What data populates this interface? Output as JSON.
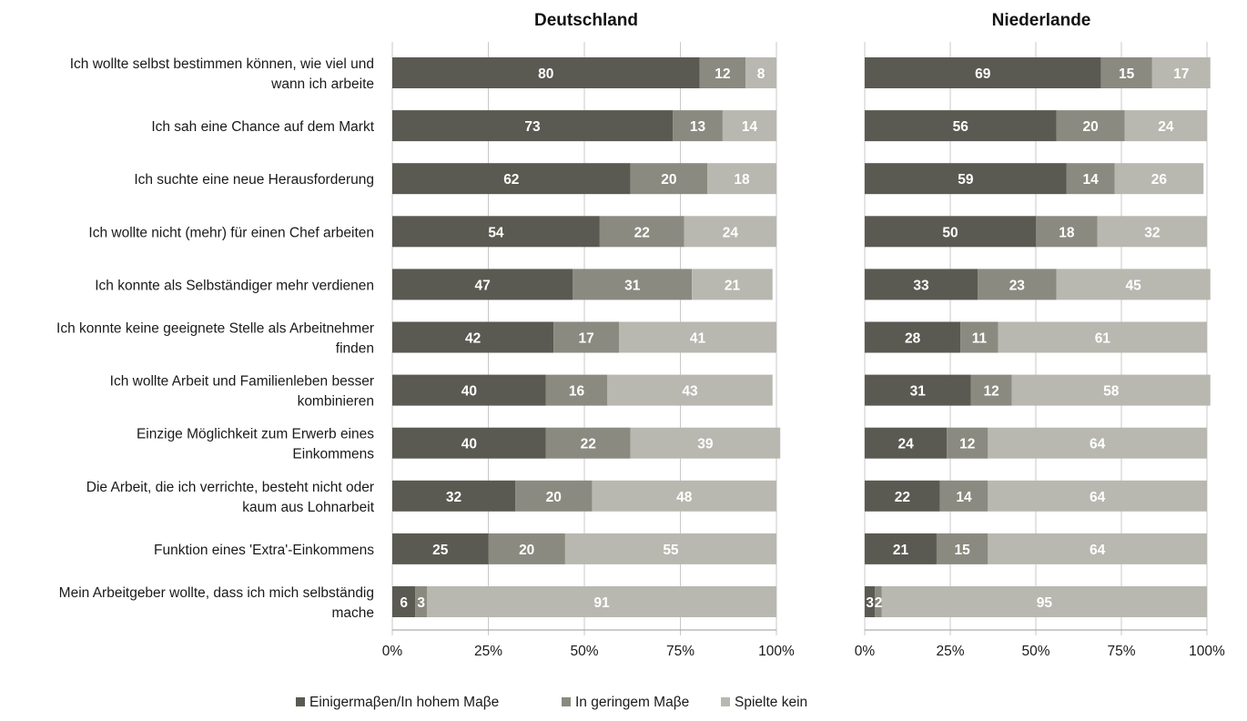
{
  "chart_data": [
    {
      "type": "bar",
      "orientation": "horizontal",
      "stacked": true,
      "title": "Deutschland",
      "categories": [
        "Ich wollte selbst bestimmen können, wie viel und wann ich arbeite",
        "Ich sah eine Chance auf dem Markt",
        "Ich suchte eine neue Herausforderung",
        "Ich wollte nicht (mehr) für einen Chef arbeiten",
        "Ich konnte als Selbständiger mehr verdienen",
        "Ich konnte keine geeignete Stelle als Arbeitnehmer finden",
        "Ich wollte Arbeit und Familienleben besser kombinieren",
        "Einzige Möglichkeit zum Erwerb eines Einkommens",
        "Die Arbeit, die ich verrichte, besteht nicht oder kaum aus Lohnarbeit",
        "Funktion eines 'Extra'-Einkommens",
        "Mein Arbeitgeber wollte, dass ich mich selbständig mache"
      ],
      "series": [
        {
          "name": "Einigermaβen/In hohem Maβe",
          "values": [
            80,
            73,
            62,
            54,
            47,
            42,
            40,
            40,
            32,
            25,
            6
          ]
        },
        {
          "name": "In geringem Maβe",
          "values": [
            12,
            13,
            20,
            22,
            31,
            17,
            16,
            22,
            20,
            20,
            3
          ]
        },
        {
          "name": "Spielte kein",
          "values": [
            8,
            14,
            18,
            24,
            21,
            41,
            43,
            39,
            48,
            55,
            91
          ]
        }
      ],
      "xlim": [
        0,
        100
      ],
      "xticks": [
        "0%",
        "25%",
        "50%",
        "75%",
        "100%"
      ],
      "colors": [
        "#5a5a52",
        "#8a8a80",
        "#b8b8b1"
      ],
      "grid": true
    },
    {
      "type": "bar",
      "orientation": "horizontal",
      "stacked": true,
      "title": "Niederlande",
      "categories": [
        "Ich wollte selbst bestimmen können, wie viel und wann ich arbeite",
        "Ich sah eine Chance auf dem Markt",
        "Ich suchte eine neue Herausforderung",
        "Ich wollte nicht (mehr) für einen Chef arbeiten",
        "Ich konnte als Selbständiger mehr verdienen",
        "Ich konnte keine geeignete Stelle als Arbeitnehmer finden",
        "Ich wollte Arbeit und Familienleben besser kombinieren",
        "Einzige Möglichkeit zum Erwerb eines Einkommens",
        "Die Arbeit, die ich verrichte, besteht nicht oder kaum aus Lohnarbeit",
        "Funktion eines 'Extra'-Einkommens",
        "Mein Arbeitgeber wollte, dass ich mich selbständig mache"
      ],
      "series": [
        {
          "name": "Einigermaβen/In hohem Maβe",
          "values": [
            69,
            56,
            59,
            50,
            33,
            28,
            31,
            24,
            22,
            21,
            3
          ]
        },
        {
          "name": "In geringem Maβe",
          "values": [
            15,
            20,
            14,
            18,
            23,
            11,
            12,
            12,
            14,
            15,
            2
          ]
        },
        {
          "name": "Spielte kein",
          "values": [
            17,
            24,
            26,
            32,
            45,
            61,
            58,
            64,
            64,
            64,
            95
          ]
        }
      ],
      "xlim": [
        0,
        100
      ],
      "xticks": [
        "0%",
        "25%",
        "50%",
        "75%",
        "100%"
      ],
      "colors": [
        "#5a5a52",
        "#8a8a80",
        "#b8b8b1"
      ],
      "grid": true
    }
  ],
  "category_lines": [
    [
      "Ich wollte selbst bestimmen können, wie viel und",
      "wann ich arbeite"
    ],
    [
      "Ich sah eine Chance auf dem Markt"
    ],
    [
      "Ich suchte eine neue Herausforderung"
    ],
    [
      "Ich wollte nicht (mehr) für einen Chef arbeiten"
    ],
    [
      "Ich konnte als Selbständiger mehr verdienen"
    ],
    [
      "Ich konnte keine geeignete Stelle als Arbeitnehmer",
      "finden"
    ],
    [
      "Ich wollte Arbeit und Familienleben besser",
      "kombinieren"
    ],
    [
      "Einzige Möglichkeit zum Erwerb eines",
      "Einkommens"
    ],
    [
      "Die Arbeit, die ich verrichte, besteht nicht oder",
      "kaum aus Lohnarbeit"
    ],
    [
      "Funktion eines 'Extra'-Einkommens"
    ],
    [
      "Mein Arbeitgeber wollte, dass ich mich selbständig",
      "mache"
    ]
  ],
  "legend": {
    "position": "bottom",
    "items": [
      {
        "label": "Einigermaβen/In hohem Maβe",
        "color": "#5a5a52"
      },
      {
        "label": "In geringem Maβe",
        "color": "#8a8a80"
      },
      {
        "label": "Spielte kein",
        "color": "#b8b8b1"
      }
    ]
  }
}
